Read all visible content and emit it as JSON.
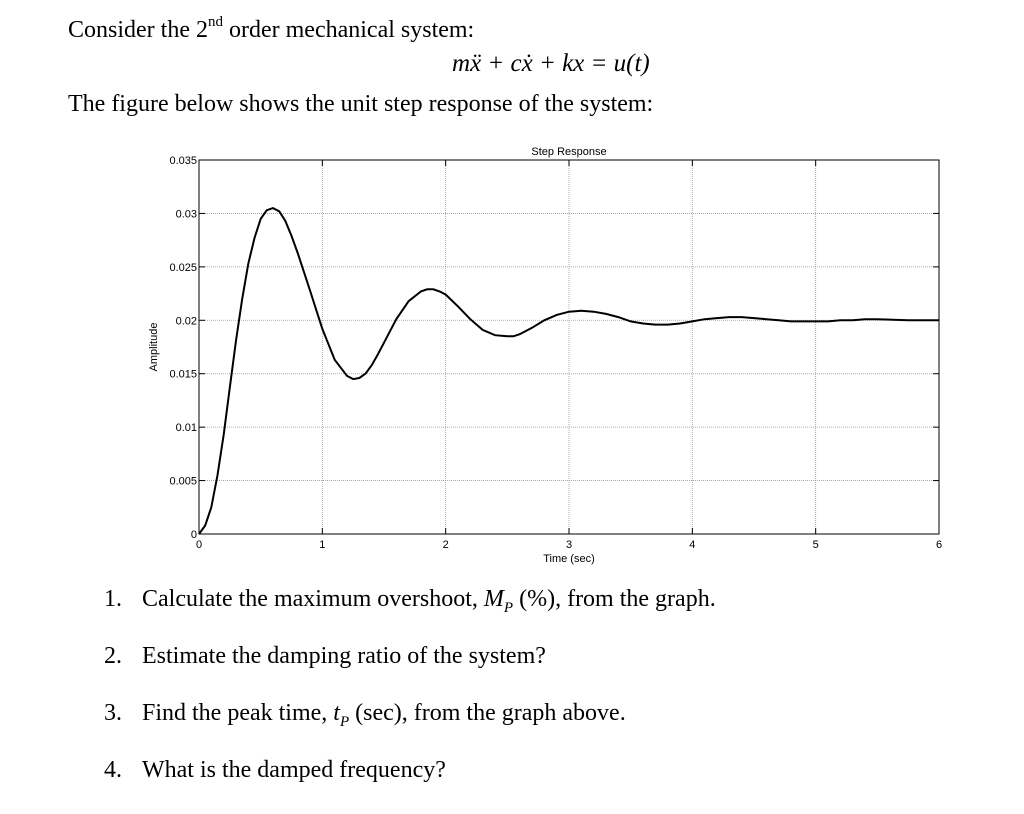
{
  "problem": {
    "intro_prefix": "Consider the 2",
    "intro_sup": "nd",
    "intro_suffix": " order mechanical system:",
    "equation_lhs": "mẍ + cẋ + kx = ",
    "equation_rhs": "u(t)",
    "figure_intro": "The figure below shows the unit step response of the system:"
  },
  "questions": [
    {
      "num": "1.",
      "text_before": "Calculate the maximum overshoot, ",
      "symbol": "M",
      "symbol_sub": "P",
      "text_after": " (%), from the graph."
    },
    {
      "num": "2.",
      "text_before": "Estimate the damping ratio of the system?",
      "symbol": "",
      "symbol_sub": "",
      "text_after": ""
    },
    {
      "num": "3.",
      "text_before": "Find the peak time, ",
      "symbol": "t",
      "symbol_sub": "P",
      "text_after": " (sec), from the graph above."
    },
    {
      "num": "4.",
      "text_before": "What is the damped frequency?",
      "symbol": "",
      "symbol_sub": "",
      "text_after": ""
    }
  ],
  "chart_data": {
    "type": "line",
    "title": "Step Response",
    "xlabel": "Time (sec)",
    "ylabel": "Amplitude",
    "xlim": [
      0,
      6
    ],
    "ylim": [
      0,
      0.035
    ],
    "x_ticks": [
      0,
      1,
      2,
      3,
      4,
      5,
      6
    ],
    "y_ticks": [
      0,
      0.005,
      0.01,
      0.015,
      0.02,
      0.025,
      0.03,
      0.035
    ],
    "x_tick_labels": [
      "0",
      "1",
      "2",
      "3",
      "4",
      "5",
      "6"
    ],
    "y_tick_labels": [
      "0",
      "0.005",
      "0.01",
      "0.015",
      "0.02",
      "0.025",
      "0.03",
      "0.035"
    ],
    "grid": true,
    "series": [
      {
        "x": [
          0,
          0.05,
          0.1,
          0.15,
          0.2,
          0.25,
          0.3,
          0.35,
          0.4,
          0.45,
          0.5,
          0.55,
          0.6,
          0.65,
          0.7,
          0.75,
          0.8,
          0.9,
          1.0,
          1.1,
          1.2,
          1.25,
          1.3,
          1.35,
          1.4,
          1.45,
          1.5,
          1.6,
          1.7,
          1.8,
          1.85,
          1.9,
          1.95,
          2.0,
          2.1,
          2.2,
          2.3,
          2.4,
          2.5,
          2.55,
          2.6,
          2.7,
          2.8,
          2.9,
          3.0,
          3.1,
          3.2,
          3.3,
          3.4,
          3.5,
          3.6,
          3.7,
          3.8,
          3.9,
          4.0,
          4.1,
          4.2,
          4.3,
          4.4,
          4.5,
          4.6,
          4.7,
          4.8,
          4.9,
          5.0,
          5.1,
          5.2,
          5.3,
          5.4,
          5.5,
          5.75,
          6.0
        ],
        "y": [
          0,
          0.0008,
          0.0025,
          0.0055,
          0.0093,
          0.0137,
          0.0181,
          0.022,
          0.0253,
          0.0277,
          0.0295,
          0.0303,
          0.0305,
          0.0302,
          0.0293,
          0.0279,
          0.0263,
          0.0228,
          0.0192,
          0.0163,
          0.0148,
          0.0145,
          0.0146,
          0.015,
          0.0158,
          0.0168,
          0.0179,
          0.0201,
          0.0218,
          0.0227,
          0.0229,
          0.0229,
          0.0227,
          0.0224,
          0.0213,
          0.0201,
          0.0191,
          0.0186,
          0.0185,
          0.0185,
          0.0187,
          0.0193,
          0.02,
          0.0205,
          0.0208,
          0.0209,
          0.0208,
          0.0206,
          0.0203,
          0.0199,
          0.0197,
          0.0196,
          0.0196,
          0.0197,
          0.0199,
          0.0201,
          0.0202,
          0.0203,
          0.0203,
          0.0202,
          0.0201,
          0.02,
          0.0199,
          0.0199,
          0.0199,
          0.0199,
          0.02,
          0.02,
          0.0201,
          0.0201,
          0.02,
          0.02
        ]
      }
    ]
  }
}
